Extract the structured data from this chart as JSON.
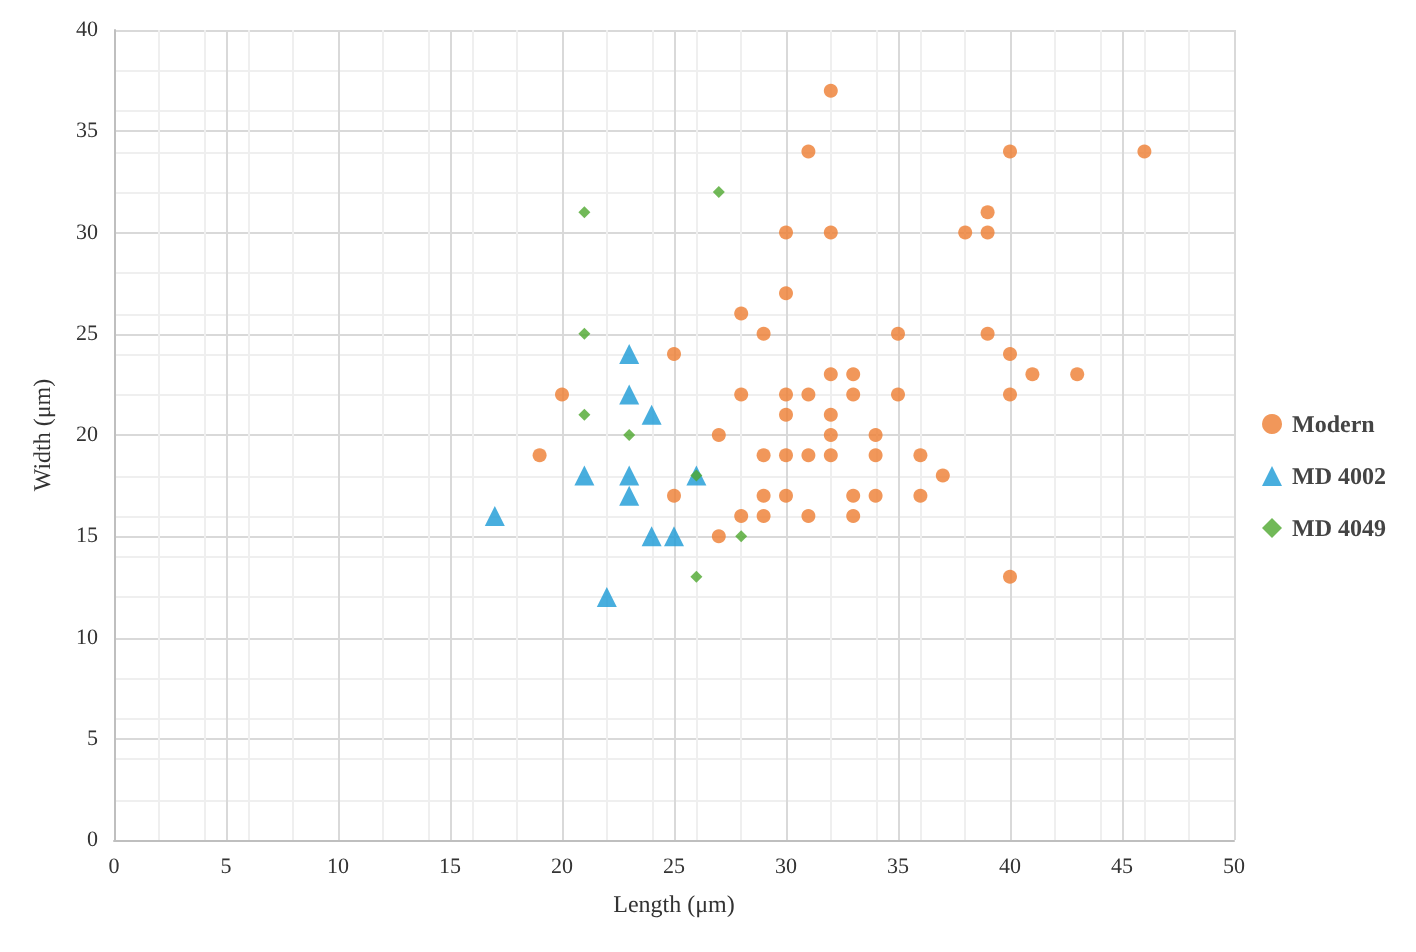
{
  "chart_data": {
    "type": "scatter",
    "xlabel": "Length (μm)",
    "ylabel": "Width (μm)",
    "xlim": [
      0,
      50
    ],
    "ylim": [
      0,
      40
    ],
    "xticks": [
      0,
      5,
      10,
      15,
      20,
      25,
      30,
      35,
      40,
      45,
      50
    ],
    "yticks": [
      0,
      5,
      10,
      15,
      20,
      25,
      30,
      35,
      40
    ],
    "grid": true,
    "legend": "right",
    "series": [
      {
        "name": "Modern",
        "color": "#ed7d31",
        "marker": "circle",
        "x": [
          19,
          20,
          25,
          25,
          27,
          27,
          28,
          28,
          28,
          29,
          29,
          29,
          29,
          30,
          30,
          30,
          30,
          30,
          30,
          31,
          31,
          31,
          31,
          32,
          32,
          32,
          32,
          32,
          32,
          33,
          33,
          33,
          33,
          34,
          34,
          34,
          35,
          35,
          36,
          36,
          37,
          38,
          39,
          39,
          39,
          40,
          40,
          40,
          40,
          41,
          43,
          46
        ],
        "values": [
          19,
          22,
          24,
          17,
          20,
          15,
          26,
          22,
          16,
          25,
          19,
          17,
          16,
          30,
          27,
          22,
          21,
          19,
          17,
          34,
          22,
          19,
          16,
          37,
          30,
          23,
          21,
          20,
          19,
          23,
          22,
          17,
          16,
          20,
          19,
          17,
          25,
          22,
          19,
          17,
          18,
          30,
          31,
          30,
          25,
          34,
          24,
          22,
          13,
          23,
          23,
          34
        ]
      },
      {
        "name": "MD 4002",
        "color": "#1a9ad6",
        "marker": "triangle",
        "x": [
          17,
          21,
          22,
          23,
          23,
          23,
          23,
          24,
          24,
          25,
          26
        ],
        "values": [
          16,
          18,
          12,
          24,
          22,
          18,
          17,
          21,
          15,
          15,
          18
        ]
      },
      {
        "name": "MD 4049",
        "color": "#4ea72e",
        "marker": "diamond",
        "x": [
          21,
          21,
          21,
          23,
          26,
          27,
          28,
          26
        ],
        "values": [
          31,
          25,
          21,
          20,
          18,
          32,
          15,
          13
        ]
      }
    ]
  }
}
